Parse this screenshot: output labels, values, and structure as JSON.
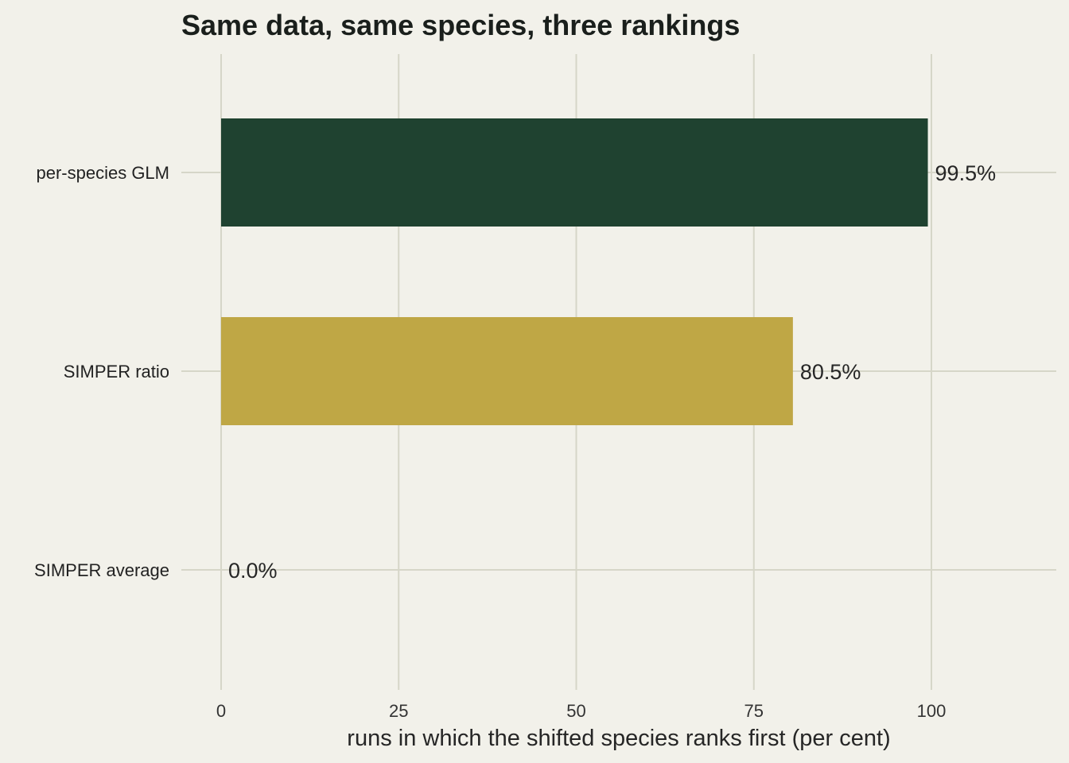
{
  "chart_data": {
    "type": "bar",
    "orientation": "horizontal",
    "title": "Same data, same species, three rankings",
    "xlabel": "runs in which the shifted species ranks first (per cent)",
    "ylabel": "",
    "categories": [
      "per-species GLM",
      "SIMPER ratio",
      "SIMPER average"
    ],
    "values": [
      99.5,
      80.5,
      0.0
    ],
    "value_labels": [
      "99.5%",
      "80.5%",
      "0.0%"
    ],
    "colors": [
      "#1f4230",
      "#bfa745",
      "#bfa745"
    ],
    "xlim": [
      -5.5,
      118
    ],
    "xticks": [
      0,
      25,
      50,
      75,
      100
    ],
    "xtick_labels": [
      "0",
      "25",
      "50",
      "75",
      "100"
    ],
    "grid": true,
    "legend": "none"
  }
}
